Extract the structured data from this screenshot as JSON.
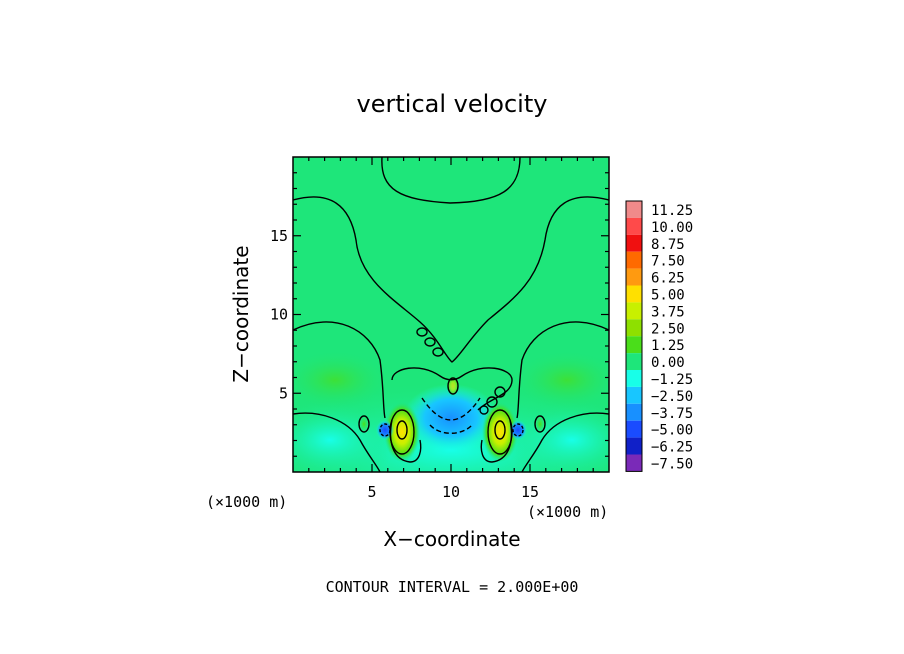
{
  "chart_data": {
    "type": "heatmap",
    "title": "vertical velocity",
    "xlabel": "X−coordinate",
    "ylabel": "Z−coordinate",
    "x_unit_left": "(×1000 m)",
    "x_unit_right": "(×1000 m)",
    "xlim": [
      0,
      20
    ],
    "ylim": [
      0,
      20
    ],
    "x_ticks": [
      5,
      10,
      15
    ],
    "y_ticks": [
      5,
      10,
      15
    ],
    "footer": "CONTOUR INTERVAL = 2.000E+00",
    "colorbar": {
      "labels": [
        "11.25",
        "10.00",
        "8.75",
        "7.50",
        "6.25",
        "5.00",
        "3.75",
        "2.50",
        "1.25",
        "0.00",
        "−1.25",
        "−2.50",
        "−3.75",
        "−5.00",
        "−6.25",
        "−7.50"
      ],
      "values": [
        11.25,
        10.0,
        8.75,
        7.5,
        6.25,
        5.0,
        3.75,
        2.5,
        1.25,
        0.0,
        -1.25,
        -2.5,
        -3.75,
        -5.0,
        -6.25,
        -7.5
      ],
      "colors": [
        "#f08a8a",
        "#ff4a4a",
        "#f01010",
        "#ff6a00",
        "#ff9a10",
        "#ffe000",
        "#c8f000",
        "#8ee000",
        "#4ade1a",
        "#1ee67a",
        "#18ffe8",
        "#18c6ff",
        "#1890ff",
        "#1a4cff",
        "#1020c8",
        "#7a2ab8"
      ]
    },
    "background_value_color": "#1ee67a"
  }
}
